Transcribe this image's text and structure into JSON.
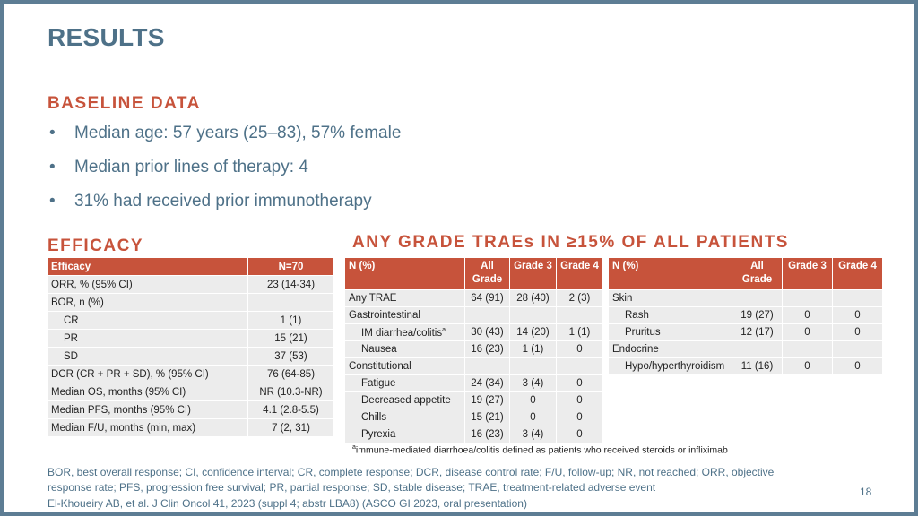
{
  "title": "RESULTS",
  "baseline": {
    "heading": "BASELINE DATA",
    "bullets": [
      "Median age: 57 years (25–83), 57% female",
      "Median prior lines of therapy: 4",
      "31% had received prior immunotherapy"
    ]
  },
  "efficacy": {
    "heading": "EFFICACY",
    "header": [
      "Efficacy",
      "N=70"
    ],
    "rows": [
      [
        "ORR, % (95% CI)",
        "23 (14-34)"
      ],
      [
        "BOR, n (%)",
        ""
      ],
      [
        "CR",
        "1 (1)"
      ],
      [
        "PR",
        "15 (21)"
      ],
      [
        "SD",
        "37 (53)"
      ],
      [
        "DCR (CR + PR + SD), % (95% CI)",
        "76 (64-85)"
      ],
      [
        "Median OS, months (95% CI)",
        "NR (10.3-NR)"
      ],
      [
        "Median PFS, months (95% CI)",
        "4.1 (2.8-5.5)"
      ],
      [
        "Median F/U, months (min, max)",
        "7 (2, 31)"
      ]
    ]
  },
  "traes": {
    "heading": "ANY GRADE TRAEs IN ≥15% OF ALL PATIENTS",
    "left": {
      "header": {
        "n": "N (%)",
        "all": "All Grade",
        "g3": "Grade 3",
        "g4": "Grade 4"
      },
      "rows": [
        [
          "Any TRAE",
          "64 (91)",
          "28 (40)",
          "2 (3)"
        ],
        [
          "Gastrointestinal",
          "",
          "",
          ""
        ],
        [
          "IM diarrhea/colitis",
          "30 (43)",
          "14 (20)",
          "1 (1)"
        ],
        [
          "Nausea",
          "16 (23)",
          "1 (1)",
          "0"
        ],
        [
          "Constitutional",
          "",
          "",
          ""
        ],
        [
          "Fatigue",
          "24 (34)",
          "3 (4)",
          "0"
        ],
        [
          "Decreased appetite",
          "19 (27)",
          "0",
          "0"
        ],
        [
          "Chills",
          "15 (21)",
          "0",
          "0"
        ],
        [
          "Pyrexia",
          "16 (23)",
          "3 (4)",
          "0"
        ]
      ],
      "superscript": "a"
    },
    "right": {
      "header": {
        "n": "N (%)",
        "all": "All Grade",
        "g3": "Grade 3",
        "g4": "Grade 4"
      },
      "rows": [
        [
          "Skin",
          "",
          "",
          ""
        ],
        [
          "Rash",
          "19 (27)",
          "0",
          "0"
        ],
        [
          "Pruritus",
          "12 (17)",
          "0",
          "0"
        ],
        [
          "Endocrine",
          "",
          "",
          ""
        ],
        [
          "Hypo/hyperthyroidism",
          "11 (16)",
          "0",
          "0"
        ]
      ]
    },
    "footnote_mark": "a",
    "footnote": "immune-mediated diarrhoea/colitis defined as patients who received steroids or infliximab"
  },
  "abbreviations": "BOR, best overall response; CI, confidence interval; CR, complete response; DCR, disease control rate; F/U, follow-up; NR, not reached; ORR, objective response rate; PFS, progression free survival; PR, partial response; SD, stable disease; TRAE, treatment-related adverse event",
  "reference": "El-Khoueiry AB, et al. J Clin Oncol 41, 2023 (suppl 4; abstr LBA8) (ASCO GI 2023, oral presentation)",
  "page_number": "18",
  "colors": {
    "accent": "#c7533b",
    "title": "#4e7188",
    "cell": "#ececec",
    "frame": "#5d7d94"
  }
}
